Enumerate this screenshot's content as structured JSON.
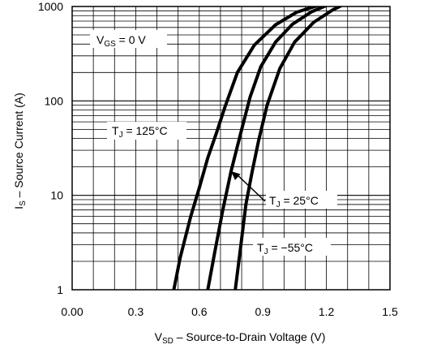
{
  "chart_data": {
    "type": "line",
    "xlabel": {
      "main": "V",
      "sub": "SD",
      "rest": " –  Source-to-Drain Voltage (V)"
    },
    "ylabel": {
      "main": "I",
      "sub": "S",
      "rest": " –  Source Current (A)"
    },
    "xlim": [
      0,
      1.5
    ],
    "ylim": [
      1,
      1000
    ],
    "y_scale": "log",
    "grid": true,
    "x_ticks": [
      0,
      0.3,
      0.6,
      0.9,
      1.2,
      1.5
    ],
    "x_tick_labels": [
      "0.00",
      "0.3",
      "0.6",
      "0.9",
      "1.2",
      "1.5"
    ],
    "y_ticks": [
      1,
      10,
      100,
      1000
    ],
    "y_tick_labels": [
      "1",
      "10",
      "100",
      "1000"
    ],
    "series": [
      {
        "name": "TJ = 125°C",
        "color": "#000000",
        "x": [
          0.48,
          0.51,
          0.56,
          0.6,
          0.64,
          0.68,
          0.72,
          0.78,
          0.86,
          0.96,
          1.06,
          1.18
        ],
        "y": [
          1,
          2.2,
          6,
          12,
          25,
          45,
          85,
          200,
          390,
          640,
          870,
          1060
        ]
      },
      {
        "name": "TJ = 25°C",
        "color": "#000000",
        "x": [
          0.64,
          0.67,
          0.71,
          0.75,
          0.8,
          0.84,
          0.89,
          0.96,
          1.04,
          1.13,
          1.22
        ],
        "y": [
          1,
          2.3,
          6.8,
          18,
          50,
          110,
          230,
          420,
          650,
          880,
          1070
        ]
      },
      {
        "name": "TJ = −55°C",
        "color": "#000000",
        "x": [
          0.77,
          0.79,
          0.82,
          0.85,
          0.88,
          0.92,
          0.98,
          1.05,
          1.14,
          1.23,
          1.3
        ],
        "y": [
          1,
          2.3,
          8,
          18,
          38,
          90,
          220,
          420,
          680,
          920,
          1100
        ]
      }
    ],
    "annotations": [
      {
        "main": "V",
        "sub": "GS",
        "rest": " = 0 V"
      },
      {
        "main": "T",
        "sub": "J",
        "rest": " = 125°C"
      },
      {
        "main": "T",
        "sub": "J",
        "rest": " = 25°C"
      },
      {
        "main": "T",
        "sub": "J",
        "rest": " = −55°C"
      }
    ],
    "arrow_target": {
      "x": 0.75,
      "y": 18
    }
  }
}
